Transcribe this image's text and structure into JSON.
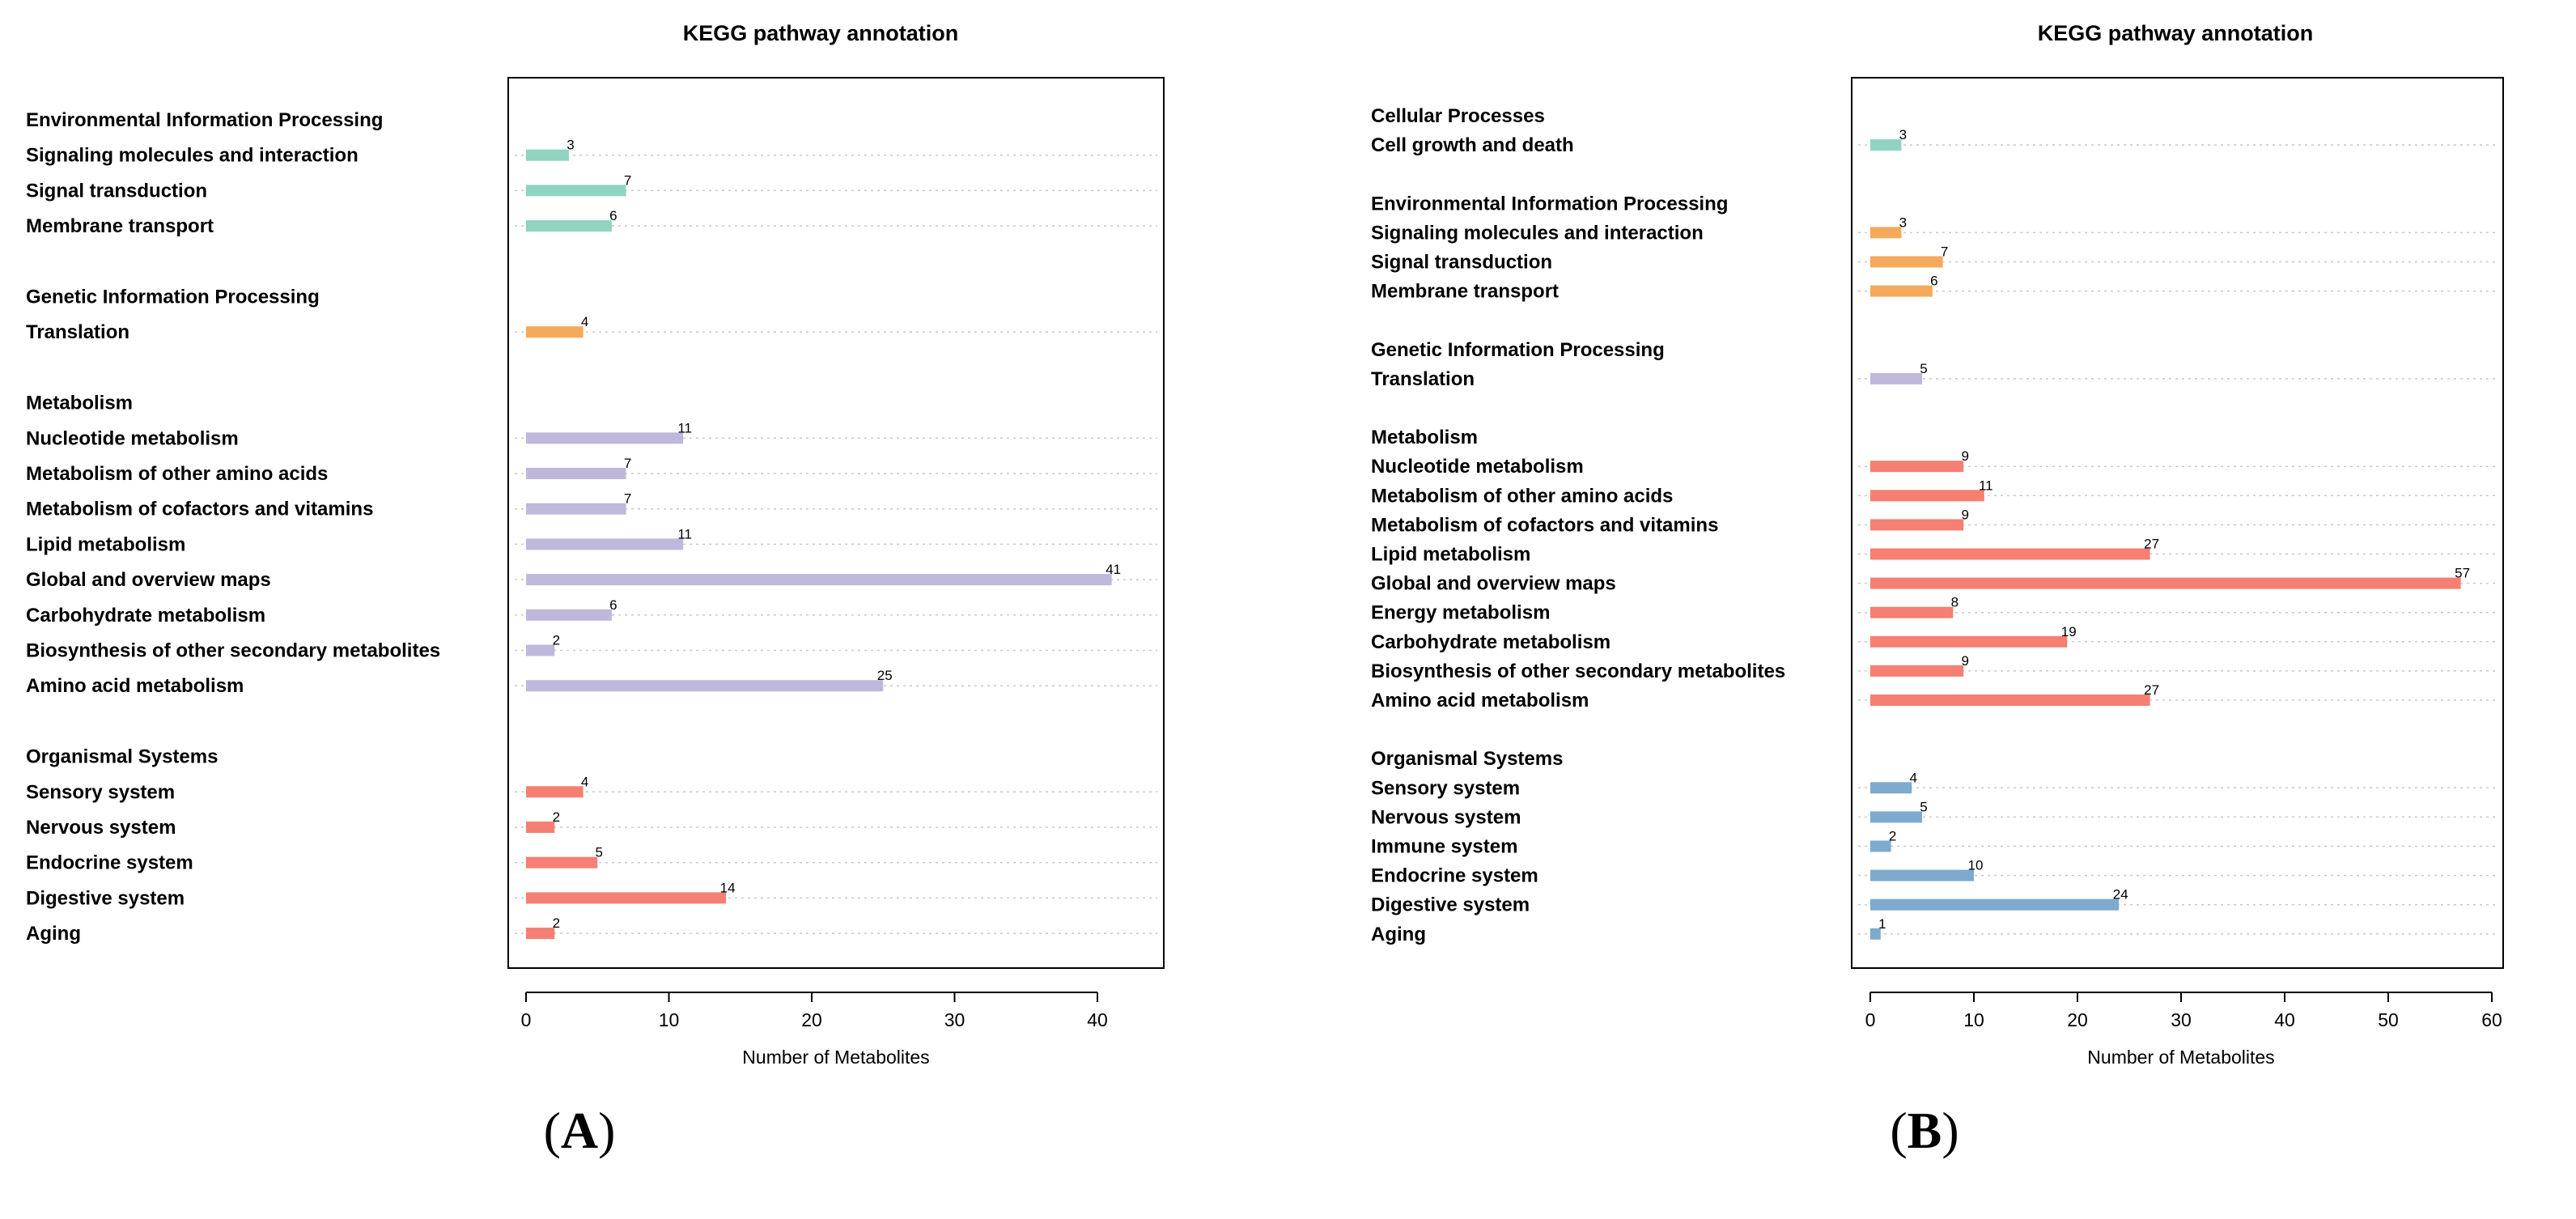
{
  "chart_data": [
    {
      "type": "bar",
      "orientation": "horizontal",
      "panel_label": "A",
      "title": "KEGG pathway annotation",
      "xlabel": "Number of Metabolites",
      "ylabel": "",
      "xlim": [
        0,
        45
      ],
      "xticks": [
        0,
        10,
        20,
        30,
        40
      ],
      "grid": "dotted horizontal guide per bar",
      "groups": [
        {
          "name": "Environmental Information Processing",
          "color": "#8fd3c0",
          "items": [
            {
              "label": "Signaling molecules and interaction",
              "value": 3,
              "label_color": "#000000"
            },
            {
              "label": "Signal transduction",
              "value": 7,
              "label_color": "#000000"
            },
            {
              "label": "Membrane transport",
              "value": 6,
              "label_color": "#000000"
            }
          ]
        },
        {
          "name": "Genetic Information Processing",
          "color": "#f5a95b",
          "items": [
            {
              "label": "Translation",
              "value": 4,
              "label_color": "#000000"
            }
          ]
        },
        {
          "name": "Metabolism",
          "color": "#bfb8da",
          "items": [
            {
              "label": "Nucleotide metabolism",
              "value": 11,
              "label_color": "#808080"
            },
            {
              "label": "Metabolism of other amino acids",
              "value": 7,
              "label_color": "#808080"
            },
            {
              "label": "Metabolism of cofactors and vitamins",
              "value": 7,
              "label_color": "#808080"
            },
            {
              "label": "Lipid metabolism",
              "value": 11,
              "label_color": "#808080"
            },
            {
              "label": "Global and overview maps",
              "value": 41,
              "label_color": "#808080"
            },
            {
              "label": "Carbohydrate metabolism",
              "value": 6,
              "label_color": "#808080"
            },
            {
              "label": "Biosynthesis of other secondary metabolites",
              "value": 2,
              "label_color": "#808080"
            },
            {
              "label": "Amino acid metabolism",
              "value": 25,
              "label_color": "#808080"
            }
          ]
        },
        {
          "name": "Organismal Systems",
          "color": "#f47f72",
          "items": [
            {
              "label": "Sensory system",
              "value": 4,
              "label_color": "#000000"
            },
            {
              "label": "Nervous system",
              "value": 2,
              "label_color": "#000000"
            },
            {
              "label": "Endocrine system",
              "value": 5,
              "label_color": "#000000"
            },
            {
              "label": "Digestive system",
              "value": 14,
              "label_color": "#000000"
            },
            {
              "label": "Aging",
              "value": 2,
              "label_color": "#000000"
            }
          ]
        }
      ]
    },
    {
      "type": "bar",
      "orientation": "horizontal",
      "panel_label": "B",
      "title": "KEGG pathway annotation",
      "xlabel": "Number of Metabolites",
      "ylabel": "",
      "xlim": [
        0,
        60
      ],
      "xticks": [
        0,
        10,
        20,
        30,
        40,
        50,
        60
      ],
      "grid": "dotted horizontal guide per bar",
      "groups": [
        {
          "name": "Cellular Processes",
          "color": "#8fd3c0",
          "items": [
            {
              "label": "Cell growth and death",
              "value": 3,
              "label_color": "#000000"
            }
          ]
        },
        {
          "name": "Environmental Information Processing",
          "color": "#f5a95b",
          "items": [
            {
              "label": "Signaling molecules and interaction",
              "value": 3,
              "label_color": "#000000"
            },
            {
              "label": "Signal transduction",
              "value": 7,
              "label_color": "#000000"
            },
            {
              "label": "Membrane transport",
              "value": 6,
              "label_color": "#000000"
            }
          ]
        },
        {
          "name": "Genetic Information Processing",
          "color": "#bfb8da",
          "items": [
            {
              "label": "Translation",
              "value": 5,
              "label_color": "#808080"
            }
          ]
        },
        {
          "name": "Metabolism",
          "color": "#f47f72",
          "items": [
            {
              "label": "Nucleotide metabolism",
              "value": 9,
              "label_color": "#000000"
            },
            {
              "label": "Metabolism of other amino acids",
              "value": 11,
              "label_color": "#000000"
            },
            {
              "label": "Metabolism of cofactors and vitamins",
              "value": 9,
              "label_color": "#000000"
            },
            {
              "label": "Lipid metabolism",
              "value": 27,
              "label_color": "#000000"
            },
            {
              "label": "Global and overview maps",
              "value": 57,
              "label_color": "#000000"
            },
            {
              "label": "Energy metabolism",
              "value": 8,
              "label_color": "#000000"
            },
            {
              "label": "Carbohydrate metabolism",
              "value": 19,
              "label_color": "#000000"
            },
            {
              "label": "Biosynthesis of other secondary metabolites",
              "value": 9,
              "label_color": "#000000"
            },
            {
              "label": "Amino acid metabolism",
              "value": 27,
              "label_color": "#000000"
            }
          ]
        },
        {
          "name": "Organismal Systems",
          "color": "#7eaacd",
          "items": [
            {
              "label": "Sensory system",
              "value": 4,
              "label_color": "#000000"
            },
            {
              "label": "Nervous system",
              "value": 5,
              "label_color": "#000000"
            },
            {
              "label": "Immune system",
              "value": 2,
              "label_color": "#000000"
            },
            {
              "label": "Endocrine system",
              "value": 10,
              "label_color": "#000000"
            },
            {
              "label": "Digestive system",
              "value": 24,
              "label_color": "#000000"
            },
            {
              "label": "Aging",
              "value": 1,
              "label_color": "#000000"
            }
          ]
        }
      ]
    }
  ]
}
